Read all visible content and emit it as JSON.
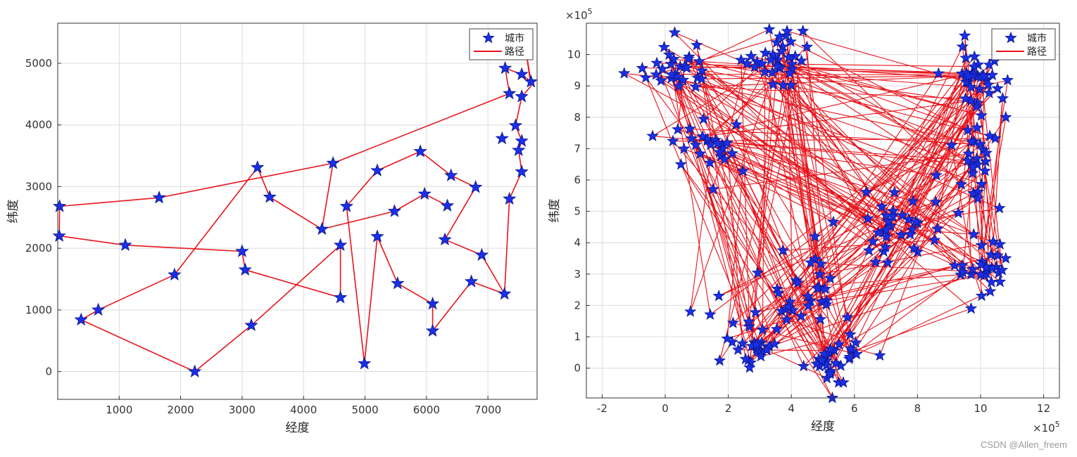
{
  "chart_data": [
    {
      "type": "line",
      "title": "",
      "xlabel": "经度",
      "ylabel": "纬度",
      "xlim": [
        0,
        7800
      ],
      "ylim": [
        -450,
        5650
      ],
      "xticks": [
        1000,
        2000,
        3000,
        4000,
        5000,
        6000,
        7000
      ],
      "xtick_labels": [
        "1000",
        "2000",
        "3000",
        "4000",
        "5000",
        "6000",
        "7000"
      ],
      "yticks": [
        0,
        1000,
        2000,
        3000,
        4000,
        5000
      ],
      "ytick_labels": [
        "0",
        "1000",
        "2000",
        "3000",
        "4000",
        "5000"
      ],
      "grid": true,
      "legend": {
        "position": "top-right",
        "entries": [
          {
            "label": "城市",
            "kind": "marker"
          },
          {
            "label": "路径",
            "kind": "line"
          }
        ]
      },
      "series": [
        {
          "name": "路径",
          "x": [
            30,
            25,
            1100,
            3000,
            3050,
            4600,
            4600,
            3150,
            2230,
            380,
            660,
            1900,
            3250,
            3450,
            4300,
            4480,
            1650,
            30
          ],
          "y": [
            2680,
            2200,
            2050,
            1950,
            1650,
            1200,
            2050,
            750,
            0,
            840,
            1000,
            1570,
            3310,
            2830,
            2310,
            3380,
            2820,
            2680
          ]
        },
        {
          "name": "路径",
          "x": [
            4480,
            7350,
            7280,
            7550,
            7700,
            7620,
            7700,
            7550,
            7450,
            7550,
            7500,
            7550,
            7350,
            7270,
            6730,
            6100,
            6100,
            5530,
            5200,
            4990,
            4700,
            5200,
            5900,
            6400,
            6800,
            6300,
            6900,
            7270
          ],
          "y": [
            3380,
            4510,
            4920,
            4820,
            4700,
            5190,
            4630,
            4460,
            3990,
            3740,
            3590,
            3240,
            2800,
            1260,
            1460,
            660,
            1100,
            1430,
            2190,
            130,
            2680,
            3260,
            3570,
            3180,
            2990,
            2140,
            1890,
            1260
          ]
        },
        {
          "name": "路径",
          "x": [
            6340,
            5970,
            5480,
            4300
          ],
          "y": [
            2690,
            2880,
            2600,
            2310
          ]
        }
      ],
      "cities": {
        "x": [
          30,
          25,
          1100,
          3000,
          3050,
          4600,
          4600,
          3150,
          2230,
          380,
          660,
          1900,
          3250,
          3450,
          4300,
          4480,
          1650,
          7350,
          7280,
          7550,
          7700,
          7620,
          7550,
          7450,
          7550,
          7500,
          7550,
          7350,
          7270,
          6730,
          6100,
          6100,
          5530,
          5200,
          4990,
          4700,
          5200,
          5900,
          6400,
          6800,
          6300,
          6900,
          6340,
          5970,
          5480,
          7230
        ],
        "y": [
          2680,
          2200,
          2050,
          1950,
          1650,
          1200,
          2050,
          750,
          0,
          840,
          1000,
          1570,
          3310,
          2830,
          2310,
          3380,
          2820,
          4510,
          4920,
          4820,
          4700,
          5190,
          4460,
          3990,
          3740,
          3590,
          3240,
          2800,
          1260,
          1460,
          660,
          1100,
          1430,
          2190,
          130,
          2680,
          3260,
          3570,
          3180,
          2990,
          2140,
          1890,
          2690,
          2880,
          2600,
          3780
        ]
      }
    },
    {
      "type": "line",
      "title": "",
      "xlabel": "经度",
      "ylabel": "纬度",
      "x_exponent": "×10^5",
      "y_exponent": "×10^5",
      "xlim": [
        -2.5,
        12.5
      ],
      "ylim": [
        -0.95,
        11
      ],
      "xticks": [
        -2,
        0,
        2,
        4,
        6,
        8,
        10,
        12
      ],
      "xtick_labels": [
        "-2",
        "0",
        "2",
        "4",
        "6",
        "8",
        "10",
        "12"
      ],
      "yticks": [
        0,
        1,
        2,
        3,
        4,
        5,
        6,
        7,
        8,
        9,
        10
      ],
      "ytick_labels": [
        "0",
        "1",
        "2",
        "3",
        "4",
        "5",
        "6",
        "7",
        "8",
        "9",
        "10"
      ],
      "grid": true,
      "legend": {
        "position": "top-right",
        "entries": [
          {
            "label": "城市",
            "kind": "marker"
          },
          {
            "label": "路径",
            "kind": "line"
          }
        ]
      },
      "clusters": [
        {
          "cx": 0.5,
          "cy": 9.6,
          "sx": 0.6,
          "sy": 0.45,
          "n": 26
        },
        {
          "cx": 3.6,
          "cy": 9.9,
          "sx": 0.9,
          "sy": 0.55,
          "n": 34
        },
        {
          "cx": 9.8,
          "cy": 9.3,
          "sx": 0.55,
          "sy": 0.7,
          "n": 34
        },
        {
          "cx": 1.4,
          "cy": 7.0,
          "sx": 1.0,
          "sy": 0.7,
          "n": 26
        },
        {
          "cx": 10.0,
          "cy": 6.6,
          "sx": 0.55,
          "sy": 1.2,
          "n": 26
        },
        {
          "cx": 7.2,
          "cy": 4.6,
          "sx": 1.3,
          "sy": 0.9,
          "n": 34
        },
        {
          "cx": 10.0,
          "cy": 3.1,
          "sx": 0.6,
          "sy": 0.6,
          "n": 26
        },
        {
          "cx": 4.5,
          "cy": 2.6,
          "sx": 1.0,
          "sy": 0.9,
          "n": 30
        },
        {
          "cx": 2.6,
          "cy": 0.7,
          "sx": 0.8,
          "sy": 0.7,
          "n": 30
        },
        {
          "cx": 5.3,
          "cy": 0.3,
          "sx": 0.8,
          "sy": 0.45,
          "n": 30
        }
      ],
      "extra_cities": {
        "x": [
          -1.3,
          -0.4,
          0.8,
          0.3,
          5.3,
          1.7,
          3.3,
          9.5,
          10.8,
          10.7,
          9.7,
          1.0,
          10.6,
          10.8
        ],
        "y": [
          9.4,
          7.4,
          1.8,
          10.7,
          -0.95,
          2.3,
          10.8,
          10.6,
          8.0,
          8.6,
          1.9,
          10.3,
          5.1,
          3.5
        ]
      }
    }
  ],
  "watermark": "CSDN @Allen_freem",
  "colors": {
    "city_fill": "#1a2fe6",
    "city_edge": "#0b158a",
    "path": "#e8141b",
    "grid": "#dcdcdc",
    "axis": "#333333"
  }
}
